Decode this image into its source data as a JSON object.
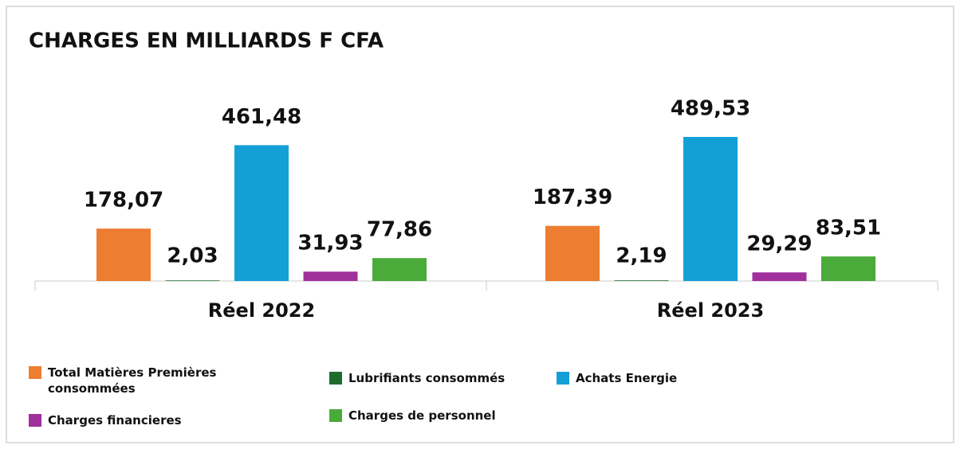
{
  "chart_data": {
    "type": "bar",
    "title": "CHARGES EN MILLIARDS F CFA",
    "categories": [
      "Réel 2022",
      "Réel 2023"
    ],
    "series": [
      {
        "name": "Total Matières Premières consommées",
        "color": "#ED7D31",
        "values": [
          178.07,
          187.39
        ],
        "value_labels": [
          "178,07",
          "187,39"
        ]
      },
      {
        "name": "Lubrifiants consommés",
        "color": "#1E6B2E",
        "values": [
          2.03,
          2.19
        ],
        "value_labels": [
          "2,03",
          "2,19"
        ]
      },
      {
        "name": "Achats Energie",
        "color": "#12A0D7",
        "values": [
          461.48,
          489.53
        ],
        "value_labels": [
          "461,48",
          "489,53"
        ]
      },
      {
        "name": "Charges financieres",
        "color": "#A0309B",
        "values": [
          31.93,
          29.29
        ],
        "value_labels": [
          "31,93",
          "29,29"
        ]
      },
      {
        "name": "Charges de personnel",
        "color": "#4AAA3A",
        "values": [
          77.86,
          83.51
        ],
        "value_labels": [
          "77,86",
          "83,51"
        ]
      }
    ]
  }
}
